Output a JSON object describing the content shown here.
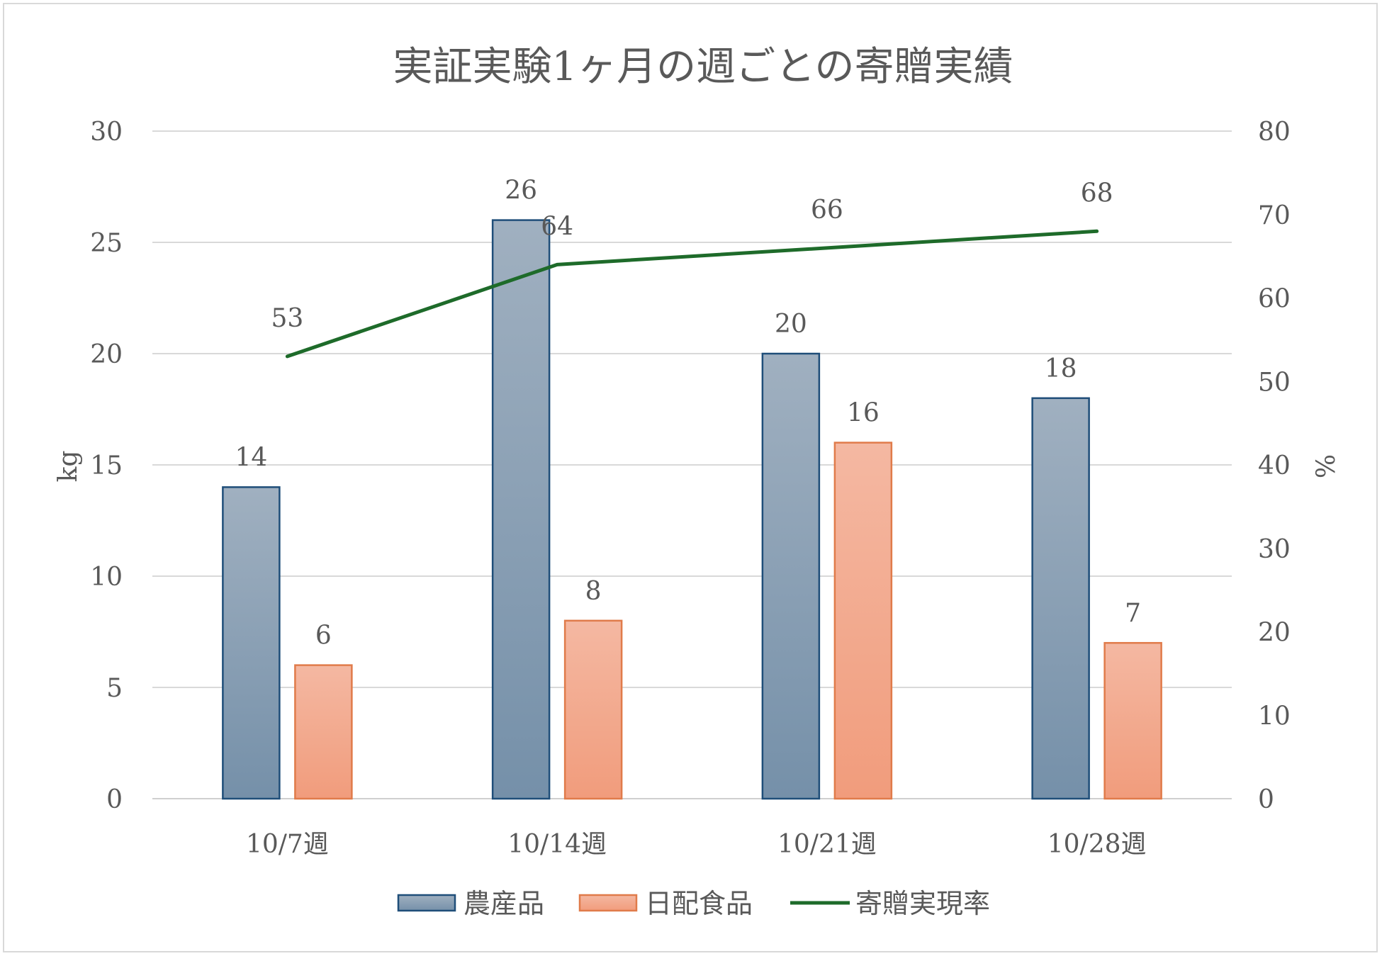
{
  "chart_data": {
    "type": "bar",
    "title": "実証実験1ヶ月の週ごとの寄贈実績",
    "categories": [
      "10/7週",
      "10/14週",
      "10/21週",
      "10/28週"
    ],
    "series": [
      {
        "name": "農産品",
        "type": "bar",
        "axis": "left",
        "values": [
          14,
          26,
          20,
          18
        ],
        "color": "#1f4e79"
      },
      {
        "name": "日配食品",
        "type": "bar",
        "axis": "left",
        "values": [
          6,
          8,
          16,
          7
        ],
        "color": "#e07b4a"
      },
      {
        "name": "寄贈実現率",
        "type": "line",
        "axis": "right",
        "values": [
          53,
          64,
          66,
          68
        ],
        "color": "#1e6b2a"
      }
    ],
    "y_left": {
      "label": "kg",
      "min": 0,
      "max": 30,
      "step": 5,
      "ticks": [
        "0",
        "5",
        "10",
        "15",
        "20",
        "25",
        "30"
      ]
    },
    "y_right": {
      "label": "%",
      "min": 0,
      "max": 80,
      "step": 10,
      "ticks": [
        "0",
        "10",
        "20",
        "30",
        "40",
        "50",
        "60",
        "70",
        "80"
      ]
    },
    "grid": true,
    "legend_position": "bottom"
  }
}
